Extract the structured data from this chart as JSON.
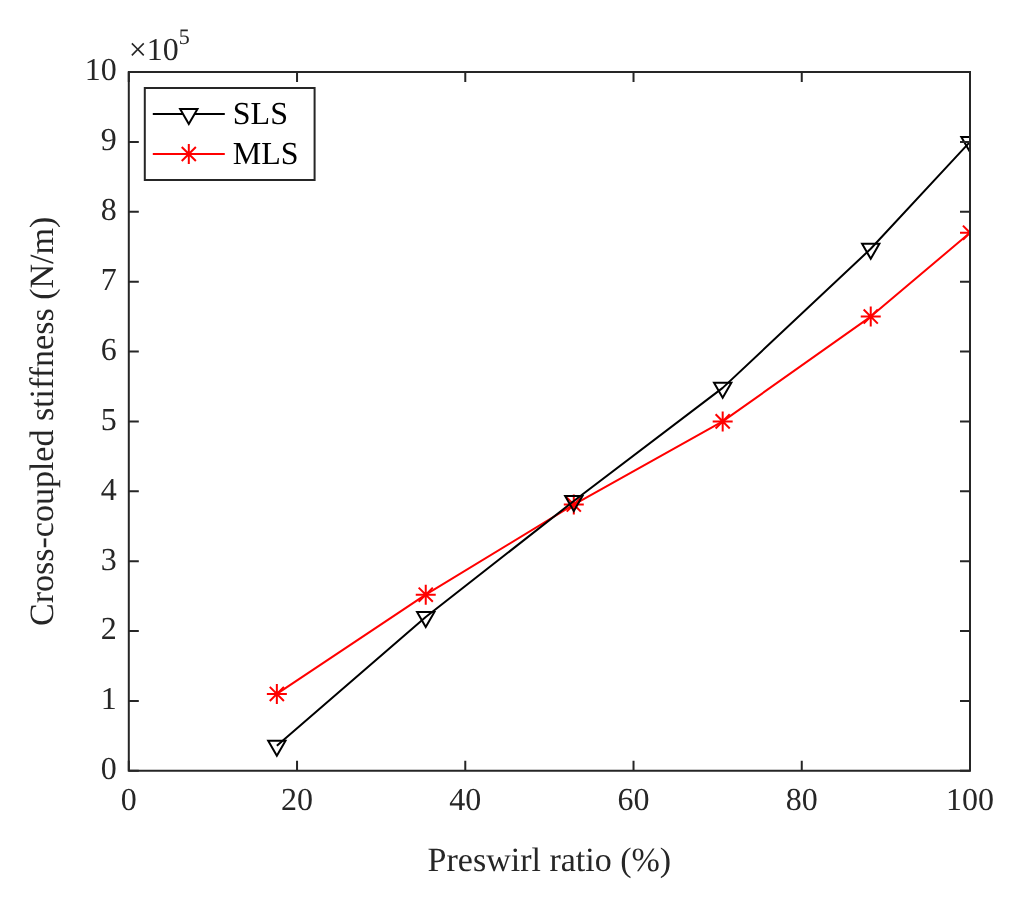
{
  "chart_data": {
    "type": "line",
    "xlabel": "Preswirl ratio (%)",
    "ylabel": "Cross-coupled stiffness (N/m)",
    "annotations": [
      "×10$^{5}$"
    ],
    "x": [
      17.6,
      35.3,
      52.9,
      70.6,
      88.2,
      100
    ],
    "series": [
      {
        "name": "SLS",
        "color": "#000000",
        "marker": "triangle",
        "values": [
          0.36,
          2.2,
          3.86,
          5.48,
          7.47,
          9.0
        ]
      },
      {
        "name": "MLS",
        "color": "#ff0000",
        "marker": "cross",
        "values": [
          1.1,
          2.52,
          3.81,
          5.0,
          6.5,
          7.7
        ]
      }
    ],
    "xlim": [
      0,
      100
    ],
    "xticks": [
      0,
      20,
      40,
      60,
      80,
      100
    ],
    "ylim": [
      0,
      10
    ],
    "yticks": [
      0,
      1,
      2,
      3,
      4,
      5,
      6,
      7,
      8,
      9,
      10
    ],
    "grid": false,
    "legend": "top left",
    "line_style": "solid"
  }
}
